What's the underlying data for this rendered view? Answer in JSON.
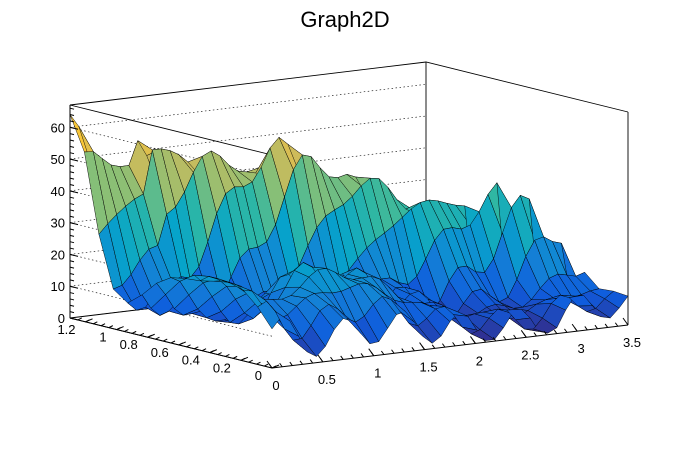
{
  "chart_data": {
    "type": "surface",
    "title": "Graph2D",
    "x_ticks": [
      "0",
      "0.5",
      "1",
      "1.5",
      "2",
      "2.5",
      "3",
      "3.5"
    ],
    "y_ticks": [
      "0",
      "0.2",
      "0.4",
      "0.6",
      "0.8",
      "1",
      "1.2"
    ],
    "z_ticks": [
      "0",
      "10",
      "20",
      "30",
      "40",
      "50",
      "60"
    ],
    "xlim": [
      0,
      3.5
    ],
    "ylim": [
      0,
      1.3
    ],
    "zlim": [
      0,
      67
    ],
    "palette": [
      "#352a87",
      "#0f5cdd",
      "#1481d6",
      "#06a4ca",
      "#2eb7a4",
      "#87bf77",
      "#d1bb59",
      "#fec832",
      "#f9fb0e"
    ],
    "grid": true
  }
}
